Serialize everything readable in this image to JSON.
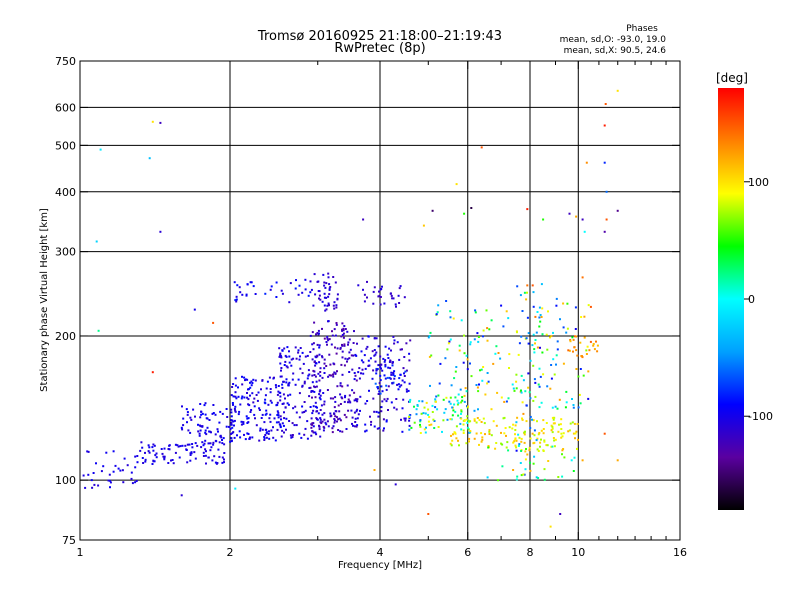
{
  "chart_data": {
    "type": "scatter",
    "title": "Tromsø 20160925 21:18:00–21:19:43",
    "subtitle": "RwPretec (8p)",
    "xlabel": "Frequency [MHz]",
    "ylabel": "Stationary phase Virtual Height [km]",
    "x_scale": "log",
    "y_scale": "log",
    "xlim": [
      1,
      16
    ],
    "ylim": [
      75,
      750
    ],
    "x_ticks": [
      1,
      2,
      4,
      6,
      8,
      10,
      16
    ],
    "x_tick_labels": [
      "1",
      "2",
      "4",
      "6",
      "8",
      "10",
      "16"
    ],
    "x_minor_ticks": [
      3,
      5,
      7,
      9,
      11,
      12,
      13,
      14,
      15
    ],
    "y_ticks": [
      75,
      100,
      200,
      300,
      400,
      500,
      600,
      750
    ],
    "y_tick_labels": [
      "75",
      "100",
      "200",
      "300",
      "400",
      "500",
      "600",
      "750"
    ],
    "grid": true,
    "stats_header": "Phases",
    "stats_lines": [
      "mean, sd,O: -93.0, 19.0",
      "mean, sd,X:  90.5, 24.6"
    ],
    "colorbar": {
      "label": "[deg]",
      "range": [
        -180,
        180
      ],
      "ticks": [
        100,
        0,
        -100
      ],
      "tick_labels": [
        "100",
        "0",
        "-100"
      ],
      "colormap": [
        "#000000",
        "#5a00a0",
        "#0000ff",
        "#00a0ff",
        "#00ffff",
        "#00ff00",
        "#ffff00",
        "#ff8000",
        "#ff0000"
      ]
    },
    "series": [
      {
        "clusters": [
          {
            "f": [
              1.0,
              1.3
            ],
            "h": [
              96,
              115
            ],
            "n": 35,
            "phase": [
              -110,
              -95
            ]
          },
          {
            "f": [
              1.3,
              1.95
            ],
            "h": [
              108,
              120
            ],
            "n": 90,
            "phase": [
              -110,
              -95
            ]
          },
          {
            "f": [
              1.6,
              2.1
            ],
            "h": [
              118,
              145
            ],
            "n": 90,
            "phase": [
              -110,
              -90
            ]
          },
          {
            "f": [
              2.0,
              2.6
            ],
            "h": [
              120,
              165
            ],
            "n": 160,
            "phase": [
              -115,
              -85
            ]
          },
          {
            "f": [
              2.5,
              3.1
            ],
            "h": [
              122,
              190
            ],
            "n": 160,
            "phase": [
              -120,
              -90
            ]
          },
          {
            "f": [
              2.9,
              3.6
            ],
            "h": [
              125,
              215
            ],
            "n": 190,
            "phase": [
              -135,
              -100
            ]
          },
          {
            "f": [
              3.5,
              4.6
            ],
            "h": [
              126,
              200
            ],
            "n": 150,
            "phase": [
              -125,
              -90
            ]
          },
          {
            "f": [
              3.9,
              4.5
            ],
            "h": [
              150,
              175
            ],
            "n": 40,
            "phase": [
              -110,
              -60
            ]
          },
          {
            "f": [
              2.0,
              2.9
            ],
            "h": [
              235,
              262
            ],
            "n": 35,
            "phase": [
              -110,
              -80
            ]
          },
          {
            "f": [
              2.9,
              3.3
            ],
            "h": [
              225,
              270
            ],
            "n": 45,
            "phase": [
              -120,
              -100
            ]
          },
          {
            "f": [
              3.6,
              4.5
            ],
            "h": [
              230,
              260
            ],
            "n": 30,
            "phase": [
              -120,
              -100
            ]
          },
          {
            "f": [
              4.5,
              6.2
            ],
            "h": [
              125,
              150
            ],
            "n": 80,
            "phase": [
              -60,
              110
            ]
          },
          {
            "f": [
              5.5,
              10.0
            ],
            "h": [
              115,
              135
            ],
            "n": 150,
            "phase": [
              70,
              120
            ]
          },
          {
            "f": [
              5.0,
              10.5
            ],
            "h": [
              140,
              240
            ],
            "n": 190,
            "phase": [
              -100,
              130
            ]
          },
          {
            "f": [
              7.5,
              8.5
            ],
            "h": [
              100,
              260
            ],
            "n": 50,
            "phase": [
              -110,
              140
            ]
          },
          {
            "f": [
              9.5,
              11.0
            ],
            "h": [
              180,
              200
            ],
            "n": 25,
            "phase": [
              110,
              150
            ]
          },
          {
            "f": [
              6.5,
              10.0
            ],
            "h": [
              100,
              120
            ],
            "n": 30,
            "phase": [
              -40,
              110
            ]
          }
        ],
        "points": [
          {
            "f": 1.1,
            "h": 490,
            "phase": -10
          },
          {
            "f": 1.4,
            "h": 560,
            "phase": 100
          },
          {
            "f": 1.45,
            "h": 557,
            "phase": -120
          },
          {
            "f": 1.38,
            "h": 470,
            "phase": -30
          },
          {
            "f": 1.45,
            "h": 330,
            "phase": -110
          },
          {
            "f": 1.08,
            "h": 315,
            "phase": -20
          },
          {
            "f": 1.09,
            "h": 205,
            "phase": 20
          },
          {
            "f": 1.4,
            "h": 168,
            "phase": 170
          },
          {
            "f": 1.7,
            "h": 227,
            "phase": -100
          },
          {
            "f": 1.85,
            "h": 213,
            "phase": 150
          },
          {
            "f": 1.6,
            "h": 93,
            "phase": -110
          },
          {
            "f": 2.05,
            "h": 96,
            "phase": -10
          },
          {
            "f": 3.7,
            "h": 350,
            "phase": -120
          },
          {
            "f": 4.9,
            "h": 340,
            "phase": 110
          },
          {
            "f": 5.1,
            "h": 365,
            "phase": -150
          },
          {
            "f": 5.9,
            "h": 360,
            "phase": 50
          },
          {
            "f": 6.1,
            "h": 370,
            "phase": -160
          },
          {
            "f": 6.4,
            "h": 495,
            "phase": 150
          },
          {
            "f": 5.7,
            "h": 415,
            "phase": 100
          },
          {
            "f": 7.9,
            "h": 368,
            "phase": 170
          },
          {
            "f": 8.5,
            "h": 350,
            "phase": 50
          },
          {
            "f": 9.6,
            "h": 360,
            "phase": -120
          },
          {
            "f": 9.9,
            "h": 355,
            "phase": 120
          },
          {
            "f": 10.2,
            "h": 350,
            "phase": -120
          },
          {
            "f": 10.3,
            "h": 330,
            "phase": 0
          },
          {
            "f": 10.4,
            "h": 460,
            "phase": 130
          },
          {
            "f": 11.3,
            "h": 460,
            "phase": -80
          },
          {
            "f": 11.3,
            "h": 550,
            "phase": 170
          },
          {
            "f": 11.35,
            "h": 610,
            "phase": 150
          },
          {
            "f": 12.0,
            "h": 650,
            "phase": 100
          },
          {
            "f": 11.4,
            "h": 400,
            "phase": -60
          },
          {
            "f": 11.3,
            "h": 330,
            "phase": -130
          },
          {
            "f": 11.4,
            "h": 350,
            "phase": 150
          },
          {
            "f": 12.0,
            "h": 365,
            "phase": -140
          },
          {
            "f": 10.2,
            "h": 110,
            "phase": 120
          },
          {
            "f": 11.3,
            "h": 125,
            "phase": 150
          },
          {
            "f": 12.0,
            "h": 110,
            "phase": 120
          },
          {
            "f": 4.3,
            "h": 98,
            "phase": -110
          },
          {
            "f": 3.9,
            "h": 105,
            "phase": 120
          },
          {
            "f": 8.8,
            "h": 80,
            "phase": 100
          },
          {
            "f": 9.2,
            "h": 85,
            "phase": -120
          },
          {
            "f": 5.0,
            "h": 85,
            "phase": 150
          },
          {
            "f": 6.9,
            "h": 100,
            "phase": 60
          },
          {
            "f": 7.4,
            "h": 105,
            "phase": 120
          },
          {
            "f": 7.9,
            "h": 255,
            "phase": 140
          },
          {
            "f": 8.1,
            "h": 255,
            "phase": 150
          },
          {
            "f": 10.6,
            "h": 230,
            "phase": 150
          },
          {
            "f": 10.2,
            "h": 265,
            "phase": 140
          }
        ]
      }
    ]
  }
}
